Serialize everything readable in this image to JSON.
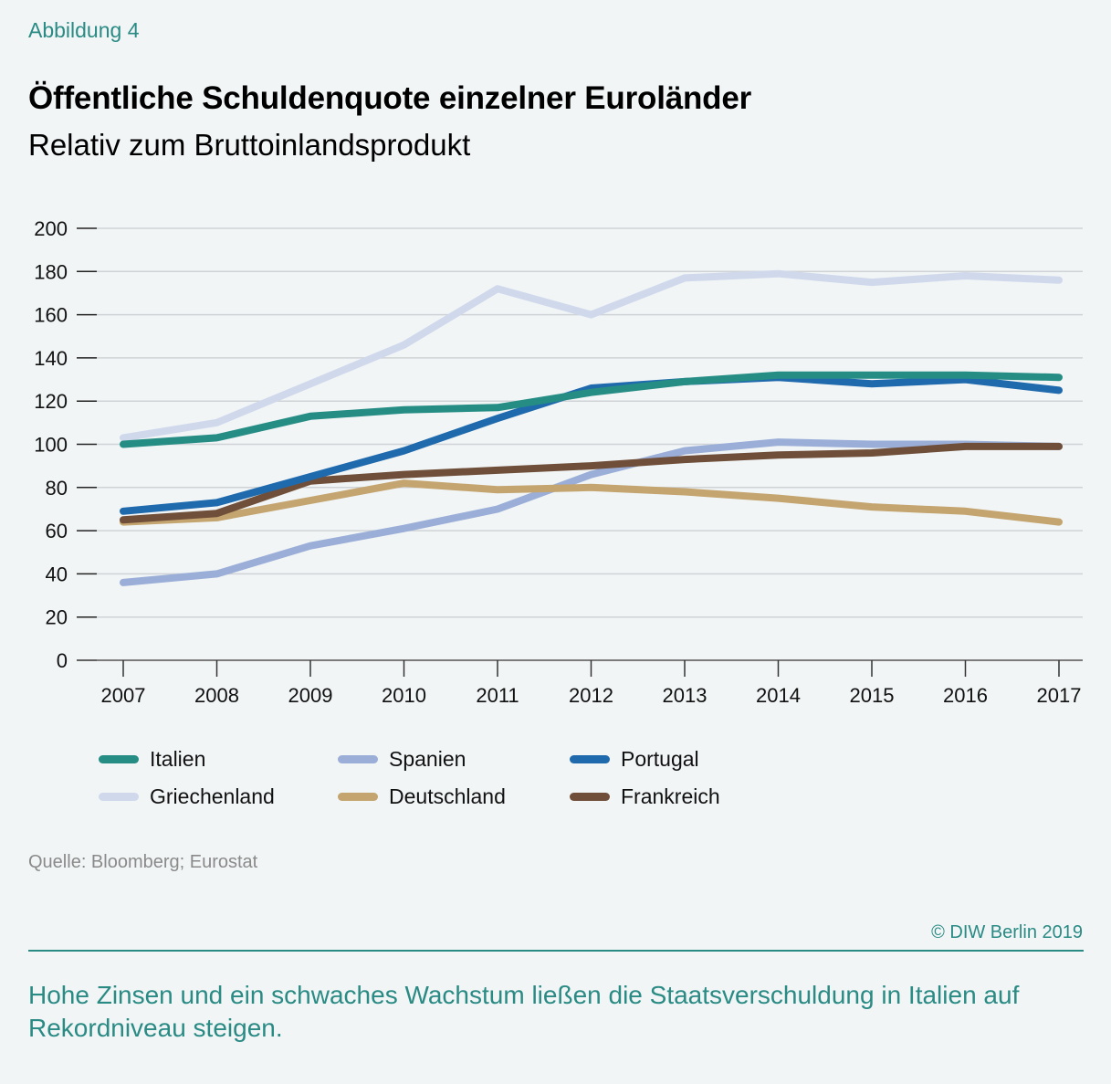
{
  "header": {
    "figure_label": "Abbildung 4",
    "title": "Öffentliche Schuldenquote einzelner Euroländer",
    "subtitle": "Relativ zum Bruttoinlandsprodukt"
  },
  "footer": {
    "source": "Quelle: Bloomberg; Eurostat",
    "copyright": "© DIW Berlin 2019",
    "caption": "Hohe Zinsen und ein schwaches Wachstum ließen die Staatsverschuldung in Italien auf Rekordniveau steigen."
  },
  "chart_data": {
    "type": "line",
    "title": "Öffentliche Schuldenquote einzelner Euroländer",
    "subtitle": "Relativ zum Bruttoinlandsprodukt",
    "xlabel": "",
    "ylabel": "",
    "x": [
      "2007",
      "2008",
      "2009",
      "2010",
      "2011",
      "2012",
      "2013",
      "2014",
      "2015",
      "2016",
      "2017"
    ],
    "ylim": [
      0,
      200
    ],
    "yticks": [
      0,
      20,
      40,
      60,
      80,
      100,
      120,
      140,
      160,
      180,
      200
    ],
    "grid": true,
    "legend_position": "bottom",
    "series": [
      {
        "name": "Griechenland",
        "color": "#d0d8ec",
        "values": [
          103,
          110,
          128,
          146,
          172,
          160,
          177,
          179,
          175,
          178,
          176
        ]
      },
      {
        "name": "Spanien",
        "color": "#9aaed8",
        "values": [
          36,
          40,
          53,
          61,
          70,
          86,
          97,
          101,
          100,
          100,
          99
        ]
      },
      {
        "name": "Deutschland",
        "color": "#c4a46f",
        "values": [
          64,
          66,
          74,
          82,
          79,
          80,
          78,
          75,
          71,
          69,
          64
        ]
      },
      {
        "name": "Frankreich",
        "color": "#6f4f3a",
        "values": [
          65,
          68,
          83,
          86,
          88,
          90,
          93,
          95,
          96,
          99,
          99
        ]
      },
      {
        "name": "Portugal",
        "color": "#1f69ad",
        "values": [
          69,
          73,
          85,
          97,
          112,
          126,
          129,
          131,
          128,
          130,
          125
        ]
      },
      {
        "name": "Italien",
        "color": "#268d85",
        "values": [
          100,
          103,
          113,
          116,
          117,
          124,
          129,
          132,
          132,
          132,
          131
        ]
      }
    ],
    "legend": [
      {
        "name": "Italien",
        "color": "#268d85"
      },
      {
        "name": "Spanien",
        "color": "#9aaed8"
      },
      {
        "name": "Portugal",
        "color": "#1f69ad"
      },
      {
        "name": "Griechenland",
        "color": "#d0d8ec"
      },
      {
        "name": "Deutschland",
        "color": "#c4a46f"
      },
      {
        "name": "Frankreich",
        "color": "#6f4f3a"
      }
    ]
  }
}
